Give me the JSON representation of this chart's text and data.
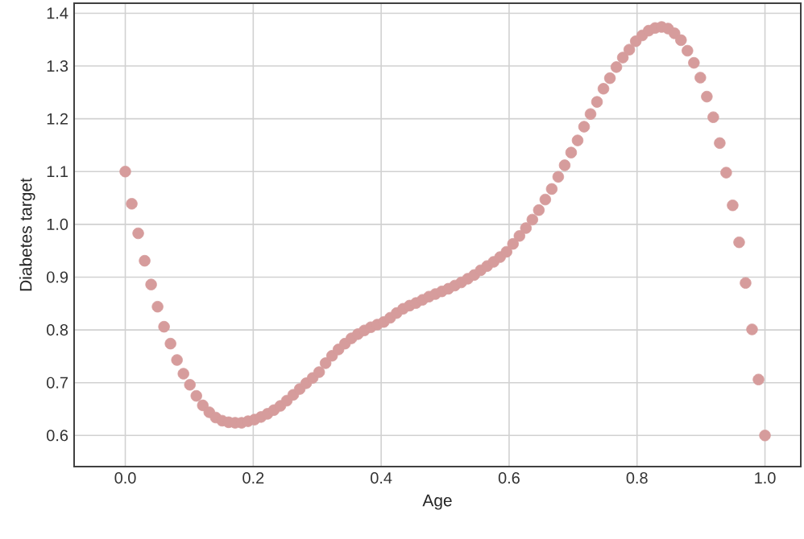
{
  "chart_data": {
    "type": "scatter",
    "xlabel": "Age",
    "ylabel": "Diabetes target",
    "x": [
      0.0,
      0.0101,
      0.0202,
      0.0303,
      0.0404,
      0.0505,
      0.0606,
      0.0707,
      0.0808,
      0.0909,
      0.101,
      0.1111,
      0.1212,
      0.1313,
      0.1414,
      0.1515,
      0.1616,
      0.1717,
      0.1818,
      0.1919,
      0.202,
      0.2121,
      0.2222,
      0.2323,
      0.2424,
      0.2525,
      0.2626,
      0.2727,
      0.2828,
      0.2929,
      0.303,
      0.3131,
      0.3232,
      0.3333,
      0.3434,
      0.3535,
      0.3636,
      0.3737,
      0.3838,
      0.3939,
      0.404,
      0.4141,
      0.4242,
      0.4343,
      0.4444,
      0.4545,
      0.4646,
      0.4747,
      0.4848,
      0.4949,
      0.5051,
      0.5152,
      0.5253,
      0.5354,
      0.5455,
      0.5556,
      0.5657,
      0.5758,
      0.5859,
      0.596,
      0.6061,
      0.6162,
      0.6263,
      0.6364,
      0.6465,
      0.6566,
      0.6667,
      0.6768,
      0.6869,
      0.697,
      0.7071,
      0.7172,
      0.7273,
      0.7374,
      0.7475,
      0.7576,
      0.7677,
      0.7778,
      0.7879,
      0.798,
      0.8081,
      0.8182,
      0.8283,
      0.8384,
      0.8485,
      0.8586,
      0.8687,
      0.8788,
      0.8889,
      0.899,
      0.9091,
      0.9192,
      0.9293,
      0.9394,
      0.9495,
      0.9596,
      0.9697,
      0.9798,
      0.9899,
      1.0
    ],
    "series": [
      {
        "color": "#d69c9c",
        "values": [
          1.1,
          1.039,
          0.983,
          0.931,
          0.886,
          0.844,
          0.806,
          0.774,
          0.743,
          0.717,
          0.696,
          0.675,
          0.657,
          0.644,
          0.634,
          0.628,
          0.625,
          0.624,
          0.624,
          0.627,
          0.63,
          0.635,
          0.641,
          0.648,
          0.656,
          0.666,
          0.677,
          0.688,
          0.699,
          0.709,
          0.72,
          0.737,
          0.751,
          0.763,
          0.774,
          0.784,
          0.792,
          0.799,
          0.805,
          0.81,
          0.815,
          0.823,
          0.832,
          0.84,
          0.846,
          0.851,
          0.857,
          0.863,
          0.868,
          0.873,
          0.878,
          0.884,
          0.89,
          0.897,
          0.904,
          0.913,
          0.921,
          0.929,
          0.938,
          0.948,
          0.963,
          0.978,
          0.993,
          1.009,
          1.027,
          1.047,
          1.067,
          1.09,
          1.112,
          1.136,
          1.159,
          1.185,
          1.209,
          1.232,
          1.257,
          1.277,
          1.298,
          1.316,
          1.331,
          1.347,
          1.358,
          1.367,
          1.372,
          1.374,
          1.371,
          1.362,
          1.349,
          1.329,
          1.306,
          1.278,
          1.242,
          1.203,
          1.154,
          1.098,
          1.036,
          0.966,
          0.889,
          0.801,
          0.706,
          0.6
        ]
      }
    ],
    "xlim": [
      -0.08,
      1.056
    ],
    "ylim": [
      0.541,
      1.419
    ],
    "xticks": [
      {
        "value": 0,
        "label": "0.0"
      },
      {
        "value": 0.2,
        "label": "0.2"
      },
      {
        "value": 0.4,
        "label": "0.4"
      },
      {
        "value": 0.6,
        "label": "0.6"
      },
      {
        "value": 0.8,
        "label": "0.8"
      },
      {
        "value": 1,
        "label": "1.0"
      }
    ],
    "yticks": [
      0.6,
      0.7,
      0.8,
      0.9,
      {
        "value": 1,
        "label": "1.0"
      },
      1.1,
      1.2,
      1.3,
      1.4
    ],
    "grid": true,
    "marker": "circle"
  }
}
